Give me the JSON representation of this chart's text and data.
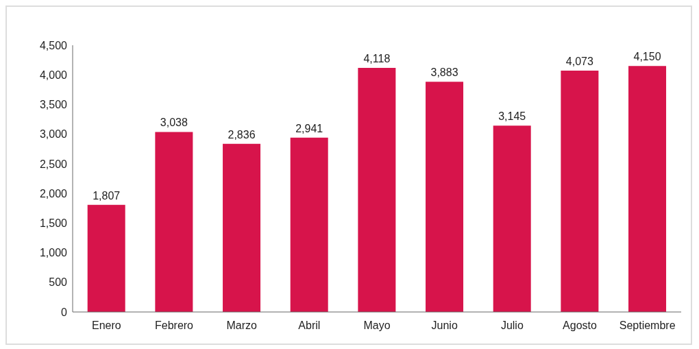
{
  "chart_data": {
    "type": "bar",
    "categories": [
      "Enero",
      "Febrero",
      "Marzo",
      "Abril",
      "Mayo",
      "Junio",
      "Julio",
      "Agosto",
      "Septiembre"
    ],
    "values": [
      1807,
      3038,
      2836,
      2941,
      4118,
      3883,
      3145,
      4073,
      4150
    ],
    "value_labels": [
      "1,807",
      "3,038",
      "2,836",
      "2,941",
      "4,118",
      "3,883",
      "3,145",
      "4,073",
      "4,150"
    ],
    "color": "#d7144b",
    "ylim": [
      0,
      4500
    ],
    "yticks": [
      0,
      500,
      {
        "value": 1000,
        "label": "1,000"
      },
      {
        "value": 1500,
        "label": "1,500"
      },
      {
        "value": 2000,
        "label": "2,000"
      },
      {
        "value": 2500,
        "label": "2,500"
      },
      {
        "value": 3000,
        "label": "3,000"
      },
      {
        "value": 3500,
        "label": "3,500"
      },
      {
        "value": 4000,
        "label": "4,000"
      },
      {
        "value": 4500,
        "label": "4,500"
      }
    ]
  }
}
